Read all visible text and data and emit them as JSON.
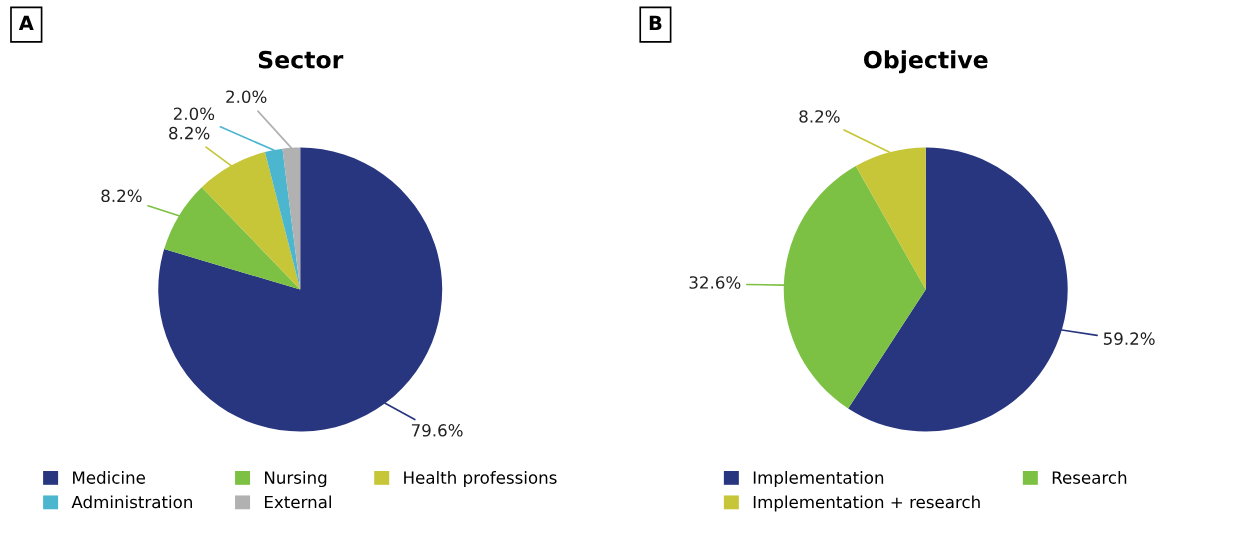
{
  "chart_data": [
    {
      "type": "pie",
      "title": "Sector",
      "annotations": [
        "A"
      ],
      "categories": [
        "Medicine",
        "Nursing",
        "Health professions",
        "Administration",
        "External"
      ],
      "values": [
        79.6,
        8.2,
        8.2,
        2.0,
        2.0
      ],
      "value_labels": [
        "79.6%",
        "8.2%",
        "8.2%",
        "2.0%",
        "2.0%"
      ],
      "colors": [
        "#28367f",
        "#7cc143",
        "#c6c638",
        "#4db6cf",
        "#b1b1b1"
      ],
      "legend": "bottom"
    },
    {
      "type": "pie",
      "title": "Objective",
      "annotations": [
        "B"
      ],
      "categories": [
        "Implementation",
        "Research",
        "Implementation + research"
      ],
      "values": [
        59.2,
        32.6,
        8.2
      ],
      "value_labels": [
        "59.2%",
        "32.6%",
        "8.2%"
      ],
      "colors": [
        "#28367f",
        "#7cc143",
        "#c6c638"
      ],
      "legend": "bottom"
    }
  ]
}
